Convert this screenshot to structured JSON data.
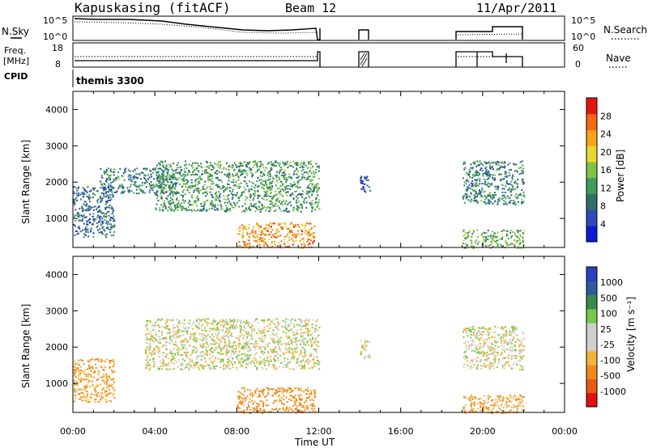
{
  "header": {
    "station": "Kapuskasing (fitACF)",
    "beam": "Beam 12",
    "date": "11/Apr/2011"
  },
  "top_panels": {
    "nsky_label": "N.Sky",
    "nsky_ticks": [
      "10^5",
      "10^0"
    ],
    "nsearch_label": "N.Search",
    "nsearch_ticks": [
      "10^5",
      "10^0"
    ],
    "freq_label_1": "Freq.",
    "freq_label_2": "[MHz]",
    "freq_ticks": [
      "18",
      "8"
    ],
    "nave_label": "Nave",
    "nave_ticks": [
      "60",
      "0"
    ],
    "cpid_label": "CPID",
    "cpid_value": "themis 3300"
  },
  "colors": {
    "power_scale": [
      "#0a1bd6",
      "#2e49b8",
      "#2f6e6a",
      "#3f9b5a",
      "#7fc245",
      "#e8d82e",
      "#f7a31c",
      "#f26a14",
      "#e3170f"
    ],
    "velocity_scale": [
      "#2b3fbf",
      "#2f5a9a",
      "#3a8a50",
      "#78c94b",
      "#cfcfcf",
      "#cfcfcf",
      "#f4b341",
      "#f08a1d",
      "#e85a10",
      "#e01010"
    ]
  },
  "chart_data": [
    {
      "type": "heatmap",
      "title": "Power",
      "xlabel": "Time UT",
      "ylabel": "Slant Range [km]",
      "x_ticks": [
        "00:00",
        "04:00",
        "08:00",
        "12:00",
        "16:00",
        "20:00",
        "00:00"
      ],
      "y_ticks": [
        "1000",
        "2000",
        "3000",
        "4000"
      ],
      "ylim": [
        200,
        4500
      ],
      "colorbar_label": "Power [dB]",
      "colorbar_ticks": [
        "4",
        "8",
        "12",
        "16",
        "20",
        "24",
        "28"
      ],
      "regions": [
        {
          "t": [
            0.0,
            2.0
          ],
          "r": [
            500,
            1900
          ],
          "value": 8
        },
        {
          "t": [
            1.3,
            5.0
          ],
          "r": [
            1700,
            2400
          ],
          "value": 10
        },
        {
          "t": [
            4.0,
            12.0
          ],
          "r": [
            1200,
            2600
          ],
          "value": 12
        },
        {
          "t": [
            8.0,
            11.8
          ],
          "r": [
            200,
            900
          ],
          "value": 24
        },
        {
          "t": [
            14.0,
            14.5
          ],
          "r": [
            1700,
            2200
          ],
          "value": 6
        },
        {
          "t": [
            19.0,
            22.0
          ],
          "r": [
            1400,
            2600
          ],
          "value": 10
        },
        {
          "t": [
            19.0,
            22.0
          ],
          "r": [
            200,
            700
          ],
          "value": 14
        }
      ]
    },
    {
      "type": "heatmap",
      "title": "Velocity",
      "xlabel": "Time UT",
      "ylabel": "Slant Range [km]",
      "x_ticks": [
        "00:00",
        "04:00",
        "08:00",
        "12:00",
        "16:00",
        "20:00",
        "00:00"
      ],
      "y_ticks": [
        "1000",
        "2000",
        "3000",
        "4000"
      ],
      "ylim": [
        200,
        4500
      ],
      "colorbar_label": "Velocity [m s⁻¹]",
      "colorbar_ticks": [
        "1000",
        "500",
        "100",
        "25",
        "-25",
        "-100",
        "-500",
        "-1000"
      ],
      "regions": [
        {
          "t": [
            0.0,
            2.0
          ],
          "r": [
            500,
            1700
          ],
          "value": -100
        },
        {
          "t": [
            3.5,
            12.0
          ],
          "r": [
            1400,
            2800
          ],
          "value": 0
        },
        {
          "t": [
            8.0,
            11.8
          ],
          "r": [
            200,
            900
          ],
          "value": -150
        },
        {
          "t": [
            14.0,
            14.5
          ],
          "r": [
            1700,
            2200
          ],
          "value": 0
        },
        {
          "t": [
            19.0,
            22.0
          ],
          "r": [
            1400,
            2600
          ],
          "value": 0
        },
        {
          "t": [
            19.0,
            22.0
          ],
          "r": [
            200,
            700
          ],
          "value": -100
        }
      ]
    }
  ]
}
